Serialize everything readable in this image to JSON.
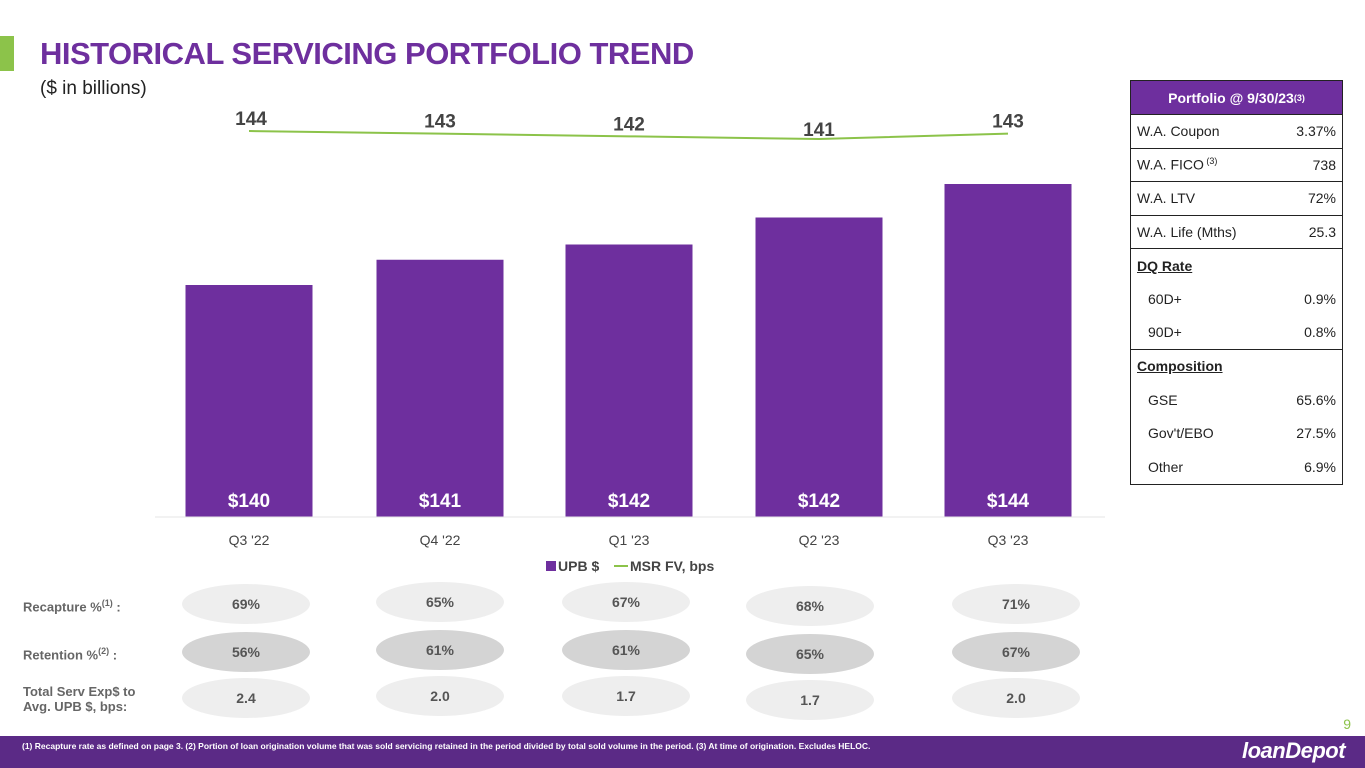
{
  "header": {
    "title": "HISTORICAL SERVICING PORTFOLIO TREND",
    "subtitle": "($ in billions)"
  },
  "colors": {
    "purple": "#6e2f9e",
    "green": "#8cc34a",
    "footer": "#5b2a86"
  },
  "chart_data": {
    "type": "bar",
    "categories": [
      "Q3 '22",
      "Q4 '22",
      "Q1 '23",
      "Q2 '23",
      "Q3 '23"
    ],
    "series": [
      {
        "name": "UPB $",
        "kind": "bar",
        "values": [
          140,
          141,
          142,
          142,
          144
        ],
        "labels": [
          "$140",
          "$141",
          "$142",
          "$142",
          "$144"
        ]
      },
      {
        "name": "MSR FV, bps",
        "kind": "line",
        "values": [
          144,
          143,
          142,
          141,
          143
        ],
        "labels": [
          "144",
          "143",
          "142",
          "141",
          "143"
        ]
      }
    ],
    "legend": {
      "position": "bottom",
      "items": [
        "UPB $",
        "MSR FV, bps"
      ]
    },
    "grid": false
  },
  "metrics": {
    "recapture": {
      "label": "Recapture %",
      "sup": "(1)",
      "suffix": " :",
      "values": [
        "69%",
        "65%",
        "67%",
        "68%",
        "71%"
      ]
    },
    "retention": {
      "label": "Retention %",
      "sup": "(2)",
      "suffix": " :",
      "values": [
        "56%",
        "61%",
        "61%",
        "65%",
        "67%"
      ]
    },
    "serv_exp": {
      "label_line1": "Total Serv Exp$ to",
      "label_line2": "Avg. UPB $, bps:",
      "values": [
        "2.4",
        "2.0",
        "1.7",
        "1.7",
        "2.0"
      ]
    }
  },
  "portfolio_table": {
    "header": "Portfolio @ 9/30/23",
    "header_sup": "(3)",
    "rows": [
      {
        "label": "W.A. Coupon",
        "value": "3.37%"
      },
      {
        "label": "W.A. FICO",
        "sup": " (3)",
        "value": "738"
      },
      {
        "label": "W.A. LTV",
        "value": "72%"
      },
      {
        "label": "W.A. Life (Mths)",
        "value": "25.3"
      }
    ],
    "dq_section": "DQ Rate",
    "dq_rows": [
      {
        "label": "60D+",
        "value": "0.9%"
      },
      {
        "label": "90D+",
        "value": "0.8%"
      }
    ],
    "comp_section": "Composition",
    "comp_rows": [
      {
        "label": "GSE",
        "value": "65.6%"
      },
      {
        "label": "Gov't/EBO",
        "value": "27.5%"
      },
      {
        "label": "Other",
        "value": "6.9%"
      }
    ]
  },
  "footer": {
    "page_number": "9",
    "footnote": "(1) Recapture rate as defined on page 3. (2) Portion of loan origination volume that was sold servicing retained in the period divided by total sold volume in the period. (3) At time of origination. Excludes HELOC.",
    "logo": "loanDepot"
  }
}
